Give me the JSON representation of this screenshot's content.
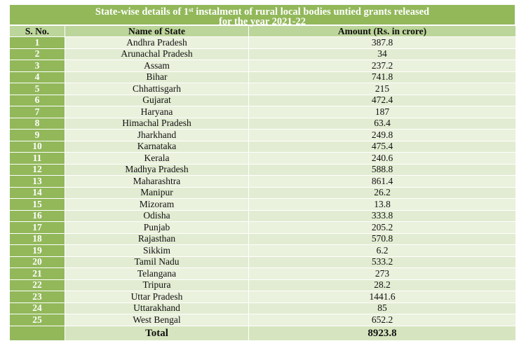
{
  "title": {
    "line1_prefix": "State-wise details of 1",
    "line1_sup": "st",
    "line1_suffix": " instalment of rural local bodies untied grants released",
    "line2": "for the year 2021-22"
  },
  "headers": {
    "sno": "S. No.",
    "state": "Name of State",
    "amount": "Amount (Rs. in crore)"
  },
  "rows": [
    {
      "sno": "1",
      "state": "Andhra Pradesh",
      "amount": "387.8"
    },
    {
      "sno": "2",
      "state": "Arunachal Pradesh",
      "amount": "34"
    },
    {
      "sno": "3",
      "state": "Assam",
      "amount": "237.2"
    },
    {
      "sno": "4",
      "state": "Bihar",
      "amount": "741.8"
    },
    {
      "sno": "5",
      "state": "Chhattisgarh",
      "amount": "215"
    },
    {
      "sno": "6",
      "state": "Gujarat",
      "amount": "472.4"
    },
    {
      "sno": "7",
      "state": "Haryana",
      "amount": "187"
    },
    {
      "sno": "8",
      "state": "Himachal Pradesh",
      "amount": "63.4"
    },
    {
      "sno": "9",
      "state": "Jharkhand",
      "amount": "249.8"
    },
    {
      "sno": "10",
      "state": "Karnataka",
      "amount": "475.4"
    },
    {
      "sno": "11",
      "state": "Kerala",
      "amount": "240.6"
    },
    {
      "sno": "12",
      "state": "Madhya Pradesh",
      "amount": "588.8"
    },
    {
      "sno": "13",
      "state": "Maharashtra",
      "amount": "861.4"
    },
    {
      "sno": "14",
      "state": "Manipur",
      "amount": "26.2"
    },
    {
      "sno": "15",
      "state": "Mizoram",
      "amount": "13.8"
    },
    {
      "sno": "16",
      "state": "Odisha",
      "amount": "333.8"
    },
    {
      "sno": "17",
      "state": "Punjab",
      "amount": "205.2"
    },
    {
      "sno": "18",
      "state": "Rajasthan",
      "amount": "570.8"
    },
    {
      "sno": "19",
      "state": "Sikkim",
      "amount": "6.2"
    },
    {
      "sno": "20",
      "state": "Tamil Nadu",
      "amount": "533.2"
    },
    {
      "sno": "21",
      "state": "Telangana",
      "amount": "273"
    },
    {
      "sno": "22",
      "state": "Tripura",
      "amount": "28.2"
    },
    {
      "sno": "23",
      "state": "Uttar Pradesh",
      "amount": "1441.6"
    },
    {
      "sno": "24",
      "state": "Uttarakhand",
      "amount": "85"
    },
    {
      "sno": "25",
      "state": "West Bengal",
      "amount": "652.2"
    }
  ],
  "total": {
    "label": "Total",
    "amount": "8923.8"
  },
  "colors": {
    "sno_column": "#92b85a",
    "header_row": "#bcd59a",
    "body": "#eaf1dd"
  }
}
